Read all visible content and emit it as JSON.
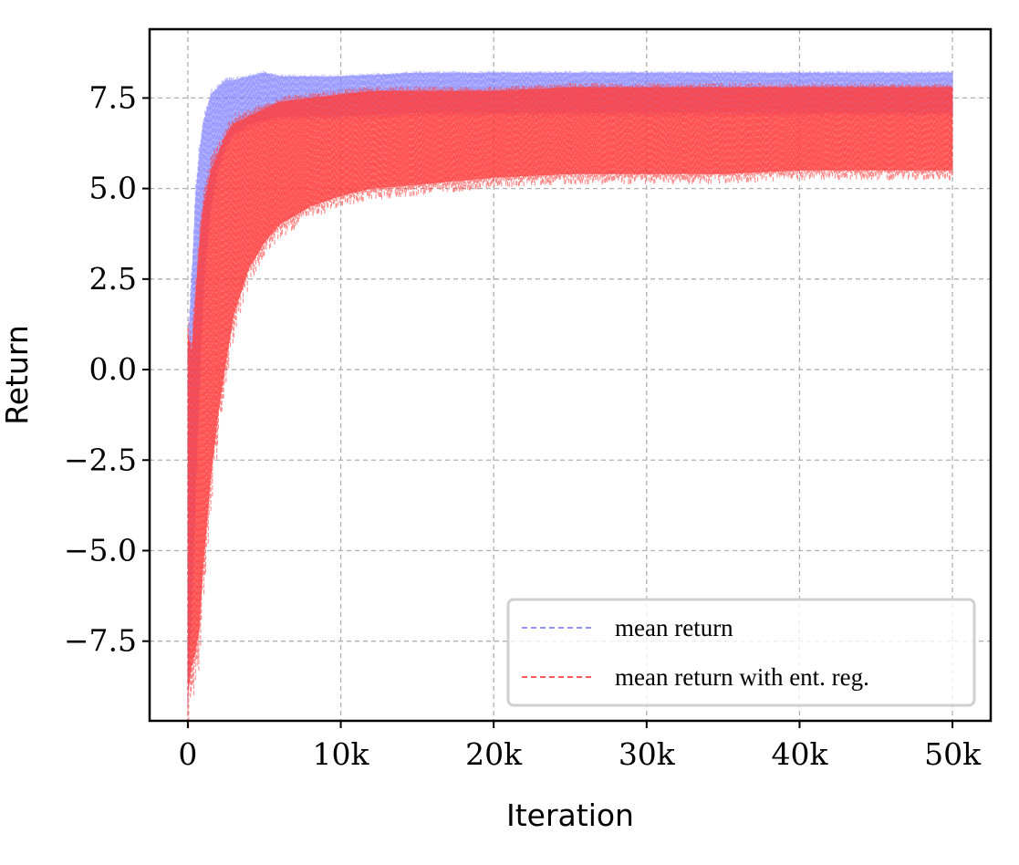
{
  "chart_data": {
    "type": "line",
    "xlabel": "Iteration",
    "ylabel": "Return",
    "xlim": [
      -2500,
      52500
    ],
    "ylim": [
      -9.7,
      9.4
    ],
    "x_ticks": [
      {
        "value": 0,
        "label": "0"
      },
      {
        "value": 10000,
        "label": "10k"
      },
      {
        "value": 20000,
        "label": "20k"
      },
      {
        "value": 30000,
        "label": "30k"
      },
      {
        "value": 40000,
        "label": "40k"
      },
      {
        "value": 50000,
        "label": "50k"
      }
    ],
    "y_ticks": [
      {
        "value": 7.5,
        "label": "7.5"
      },
      {
        "value": 5.0,
        "label": "5.0"
      },
      {
        "value": 2.5,
        "label": "2.5"
      },
      {
        "value": 0.0,
        "label": "0.0"
      },
      {
        "value": -2.5,
        "label": "−2.5"
      },
      {
        "value": -5.0,
        "label": "−5.0"
      },
      {
        "value": -7.5,
        "label": "−7.5"
      }
    ],
    "grid": true,
    "legend_position": "bottom-right",
    "series": [
      {
        "name": "mean return",
        "color": "#8080ff",
        "line_style": "dashed",
        "x": [
          0,
          250,
          500,
          750,
          1000,
          1250,
          1500,
          2000,
          2500,
          3000,
          4000,
          5000,
          6000,
          8000,
          10000,
          15000,
          20000,
          30000,
          40000,
          50000
        ],
        "lower": [
          -8.5,
          -6.5,
          -3.5,
          -0.5,
          2.0,
          3.5,
          4.5,
          5.6,
          6.2,
          6.5,
          6.8,
          6.9,
          7.0,
          7.0,
          7.0,
          7.1,
          7.1,
          7.1,
          7.1,
          7.1
        ],
        "upper": [
          0.5,
          2.5,
          4.8,
          6.0,
          6.8,
          7.2,
          7.6,
          7.8,
          8.0,
          8.0,
          8.1,
          8.2,
          8.1,
          8.1,
          8.1,
          8.2,
          8.2,
          8.2,
          8.2,
          8.2
        ]
      },
      {
        "name": "mean return with ent. reg.",
        "color": "#ff4040",
        "line_style": "dashed",
        "x": [
          0,
          250,
          500,
          750,
          1000,
          1500,
          2000,
          2500,
          3000,
          4000,
          5000,
          6000,
          8000,
          10000,
          12000,
          15000,
          20000,
          25000,
          30000,
          35000,
          40000,
          45000,
          50000
        ],
        "lower": [
          -9.0,
          -8.2,
          -7.8,
          -7.2,
          -5.5,
          -3.0,
          -1.2,
          0.2,
          1.5,
          2.8,
          3.5,
          4.0,
          4.5,
          4.8,
          5.0,
          5.1,
          5.3,
          5.4,
          5.4,
          5.4,
          5.5,
          5.5,
          5.5
        ],
        "upper": [
          1.0,
          0.5,
          2.0,
          3.5,
          4.5,
          5.5,
          6.0,
          6.5,
          6.8,
          7.0,
          7.2,
          7.4,
          7.5,
          7.6,
          7.7,
          7.7,
          7.7,
          7.8,
          7.8,
          7.8,
          7.8,
          7.8,
          7.8
        ]
      }
    ]
  }
}
